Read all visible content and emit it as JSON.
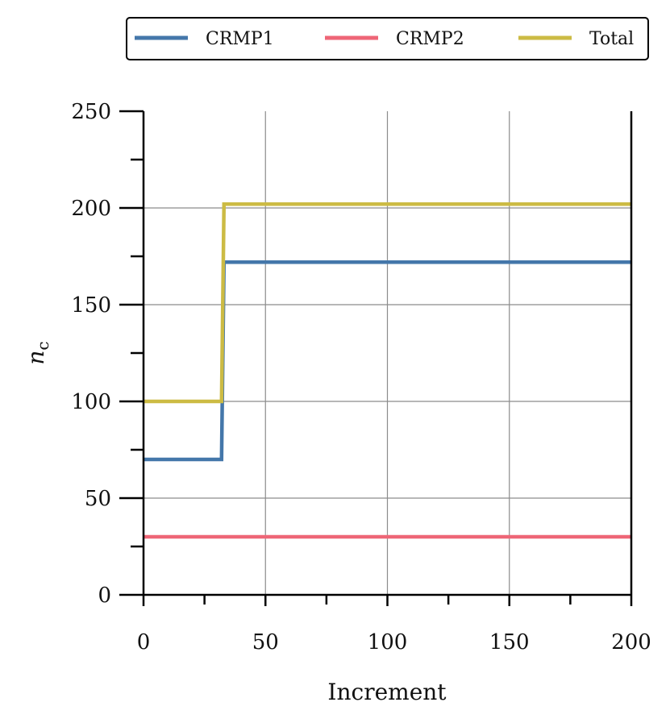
{
  "chart_data": {
    "type": "line",
    "title": "",
    "xlabel": "Increment",
    "ylabel": "n_c",
    "ylabel_main": "n",
    "ylabel_sub": "c",
    "xlim": [
      0,
      200
    ],
    "ylim": [
      0,
      250
    ],
    "x_ticks": [
      0,
      50,
      100,
      150,
      200
    ],
    "y_ticks": [
      0,
      50,
      100,
      150,
      200,
      250
    ],
    "x_tick_labels": [
      "0",
      "50",
      "100",
      "150",
      "200"
    ],
    "y_tick_labels": [
      "0",
      "50",
      "100",
      "150",
      "200",
      "250"
    ],
    "grid": true,
    "legend_position": "top",
    "series": [
      {
        "name": "CRMP1",
        "color": "#4477aa",
        "x": [
          0,
          32,
          33,
          200
        ],
        "y": [
          70,
          70,
          172,
          172
        ]
      },
      {
        "name": "CRMP2",
        "color": "#ee6677",
        "x": [
          0,
          200
        ],
        "y": [
          30,
          30
        ]
      },
      {
        "name": "Total",
        "color": "#ccbb44",
        "x": [
          0,
          32,
          33,
          200
        ],
        "y": [
          100,
          100,
          202,
          202
        ]
      }
    ]
  }
}
